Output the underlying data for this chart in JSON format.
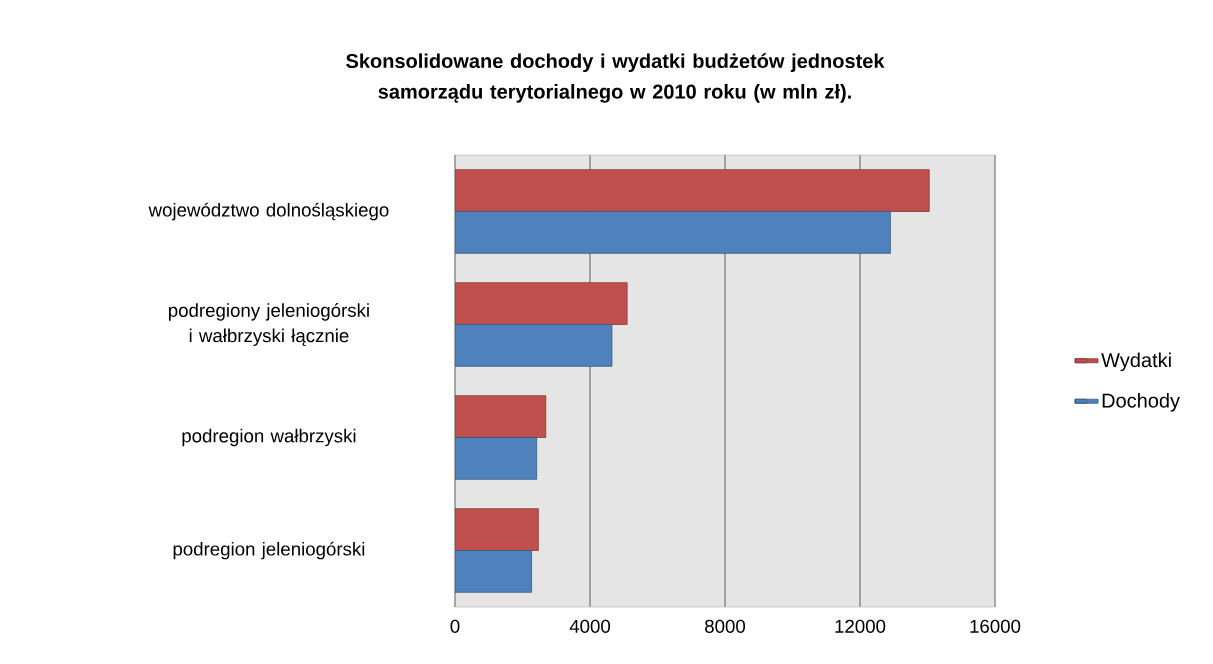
{
  "chart_data": {
    "type": "bar",
    "orientation": "horizontal",
    "title": "Skonsolidowane dochody i wydatki budżetów jednostek samorządu terytorialnego w 2010 roku (w mln zł).",
    "categories": [
      "województwo dolnośląskiego",
      "podregiony jeleniogórski i wałbrzyski łącznie",
      "podregion wałbrzyski",
      "podregion jeleniogórski"
    ],
    "series": [
      {
        "name": "Wydatki",
        "color": "#c0504d",
        "values": [
          14050,
          5100,
          2690,
          2470
        ]
      },
      {
        "name": "Dochody",
        "color": "#4f81bd",
        "values": [
          12900,
          4650,
          2420,
          2270
        ]
      }
    ],
    "xlim": [
      0,
      16000
    ],
    "xticks": [
      0,
      4000,
      8000,
      12000,
      16000
    ],
    "grid": "x",
    "legend": "right"
  }
}
